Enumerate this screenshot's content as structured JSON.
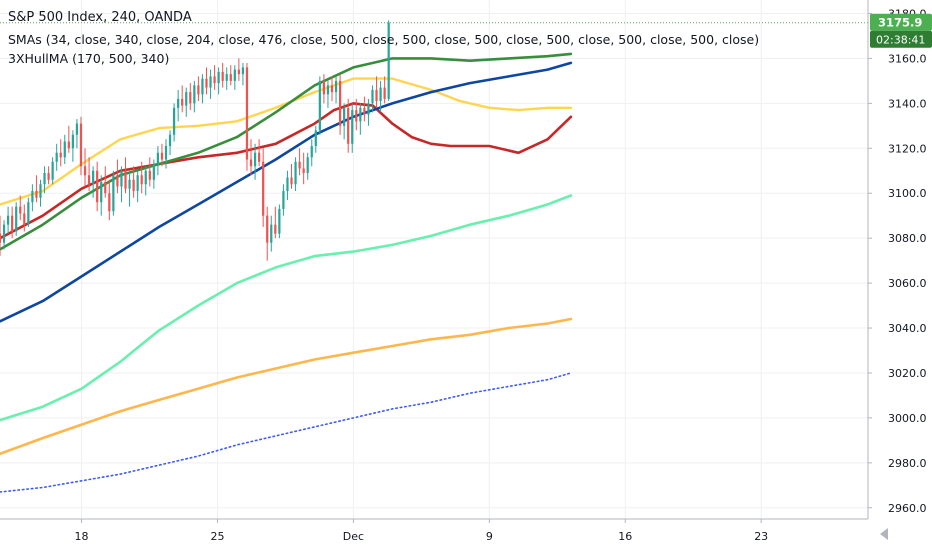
{
  "header": {
    "title": "S&P 500 Index, 240, OANDA",
    "study_1": "SMAs (34, close, 340, close, 204, close, 476, close, 500, close, 500, close, 500, close, 500, close, 500, close, 500, close)",
    "study_2": "3XHullMA (170, 500, 340)"
  },
  "price_axis": {
    "last_price": "3175.9",
    "countdown": "02:38:41",
    "last_price_color": "#4caf50",
    "countdown_color": "#2e7d32"
  },
  "chart_data": {
    "type": "candlestick",
    "title": "S&P 500 Index, 240, OANDA",
    "x_ticks": [
      {
        "label": "18",
        "day": 18
      },
      {
        "label": "25",
        "day": 25
      },
      {
        "label": "Dec",
        "day": 32
      },
      {
        "label": "9",
        "day": 39
      },
      {
        "label": "16",
        "day": 46
      },
      {
        "label": "23",
        "day": 53
      }
    ],
    "y_ticks": [
      2960,
      2980,
      3000,
      3020,
      3040,
      3060,
      3080,
      3100,
      3120,
      3140,
      3160,
      3180
    ],
    "y_tick_labels": [
      "2960.0",
      "2980.0",
      "3000.0",
      "3020.0",
      "3040.0",
      "3060.0",
      "3080.0",
      "3100.0",
      "3120.0",
      "3140.0",
      "3160.0",
      "3180.0"
    ],
    "ylim": [
      2955,
      3186
    ],
    "xlim_day": [
      13.8,
      58.5
    ],
    "last_price": 3175.9,
    "colors": {
      "up": "#26a69a",
      "down": "#ef5350"
    },
    "candles_start_day": 13.8,
    "candles_day_step": 0.2085,
    "candles": [
      [
        3082,
        3090,
        3072,
        3078
      ],
      [
        3078,
        3088,
        3075,
        3086
      ],
      [
        3086,
        3094,
        3082,
        3090
      ],
      [
        3090,
        3094,
        3080,
        3083
      ],
      [
        3083,
        3096,
        3081,
        3094
      ],
      [
        3094,
        3099,
        3088,
        3091
      ],
      [
        3091,
        3095,
        3083,
        3086
      ],
      [
        3086,
        3098,
        3085,
        3096
      ],
      [
        3096,
        3104,
        3092,
        3101
      ],
      [
        3101,
        3108,
        3096,
        3098
      ],
      [
        3098,
        3106,
        3094,
        3104
      ],
      [
        3104,
        3112,
        3100,
        3109
      ],
      [
        3109,
        3112,
        3104,
        3106
      ],
      [
        3106,
        3116,
        3104,
        3114
      ],
      [
        3114,
        3122,
        3110,
        3118
      ],
      [
        3118,
        3124,
        3112,
        3116
      ],
      [
        3116,
        3126,
        3113,
        3123
      ],
      [
        3123,
        3130,
        3118,
        3120
      ],
      [
        3120,
        3128,
        3114,
        3126
      ],
      [
        3126,
        3133,
        3120,
        3131
      ],
      [
        3131,
        3134,
        3108,
        3112
      ],
      [
        3112,
        3120,
        3103,
        3108
      ],
      [
        3108,
        3116,
        3101,
        3104
      ],
      [
        3104,
        3112,
        3098,
        3110
      ],
      [
        3110,
        3114,
        3092,
        3096
      ],
      [
        3096,
        3108,
        3090,
        3105
      ],
      [
        3105,
        3112,
        3098,
        3100
      ],
      [
        3100,
        3106,
        3088,
        3092
      ],
      [
        3092,
        3110,
        3090,
        3108
      ],
      [
        3108,
        3115,
        3100,
        3103
      ],
      [
        3103,
        3112,
        3096,
        3110
      ],
      [
        3110,
        3116,
        3100,
        3102
      ],
      [
        3102,
        3110,
        3094,
        3106
      ],
      [
        3106,
        3112,
        3098,
        3101
      ],
      [
        3101,
        3110,
        3096,
        3108
      ],
      [
        3108,
        3114,
        3100,
        3104
      ],
      [
        3104,
        3112,
        3099,
        3110
      ],
      [
        3110,
        3116,
        3103,
        3106
      ],
      [
        3106,
        3115,
        3102,
        3113
      ],
      [
        3113,
        3121,
        3108,
        3118
      ],
      [
        3118,
        3122,
        3112,
        3115
      ],
      [
        3115,
        3124,
        3111,
        3121
      ],
      [
        3121,
        3128,
        3117,
        3126
      ],
      [
        3126,
        3140,
        3123,
        3138
      ],
      [
        3138,
        3146,
        3132,
        3142
      ],
      [
        3142,
        3148,
        3136,
        3139
      ],
      [
        3139,
        3147,
        3134,
        3145
      ],
      [
        3145,
        3149,
        3137,
        3140
      ],
      [
        3140,
        3150,
        3136,
        3148
      ],
      [
        3148,
        3152,
        3141,
        3144
      ],
      [
        3144,
        3153,
        3140,
        3151
      ],
      [
        3151,
        3156,
        3144,
        3147
      ],
      [
        3147,
        3155,
        3142,
        3152
      ],
      [
        3152,
        3157,
        3146,
        3149
      ],
      [
        3149,
        3156,
        3144,
        3154
      ],
      [
        3154,
        3158,
        3147,
        3150
      ],
      [
        3150,
        3156,
        3146,
        3153
      ],
      [
        3153,
        3157,
        3148,
        3150
      ],
      [
        3150,
        3157,
        3146,
        3155
      ],
      [
        3155,
        3160,
        3150,
        3153
      ],
      [
        3153,
        3158,
        3148,
        3156
      ],
      [
        3156,
        3158,
        3110,
        3115
      ],
      [
        3115,
        3124,
        3108,
        3112
      ],
      [
        3112,
        3122,
        3106,
        3118
      ],
      [
        3118,
        3124,
        3112,
        3114
      ],
      [
        3114,
        3120,
        3085,
        3090
      ],
      [
        3090,
        3094,
        3070,
        3078
      ],
      [
        3078,
        3090,
        3074,
        3086
      ],
      [
        3086,
        3094,
        3080,
        3082
      ],
      [
        3082,
        3095,
        3080,
        3093
      ],
      [
        3093,
        3104,
        3090,
        3101
      ],
      [
        3101,
        3110,
        3097,
        3107
      ],
      [
        3107,
        3113,
        3102,
        3104
      ],
      [
        3104,
        3116,
        3101,
        3114
      ],
      [
        3114,
        3120,
        3108,
        3111
      ],
      [
        3111,
        3118,
        3104,
        3109
      ],
      [
        3109,
        3118,
        3106,
        3116
      ],
      [
        3116,
        3124,
        3112,
        3121
      ],
      [
        3121,
        3130,
        3118,
        3128
      ],
      [
        3128,
        3152,
        3126,
        3150
      ],
      [
        3150,
        3153,
        3140,
        3144
      ],
      [
        3144,
        3150,
        3138,
        3148
      ],
      [
        3148,
        3152,
        3141,
        3145
      ],
      [
        3145,
        3152,
        3140,
        3150
      ],
      [
        3150,
        3153,
        3126,
        3130
      ],
      [
        3130,
        3140,
        3124,
        3138
      ],
      [
        3138,
        3142,
        3118,
        3122
      ],
      [
        3122,
        3140,
        3118,
        3137
      ],
      [
        3137,
        3142,
        3128,
        3132
      ],
      [
        3132,
        3140,
        3126,
        3138
      ],
      [
        3138,
        3143,
        3132,
        3135
      ],
      [
        3135,
        3142,
        3130,
        3140
      ],
      [
        3140,
        3148,
        3136,
        3146
      ],
      [
        3146,
        3152,
        3138,
        3141
      ],
      [
        3141,
        3150,
        3136,
        3147
      ],
      [
        3147,
        3152,
        3140,
        3142
      ],
      [
        3142,
        3177,
        3141,
        3175.9
      ]
    ],
    "series": [
      {
        "color": "#ffd54f",
        "width": 2.4,
        "style": "line",
        "points": [
          [
            13.8,
            3095
          ],
          [
            16,
            3101
          ],
          [
            18,
            3113
          ],
          [
            20,
            3124
          ],
          [
            22,
            3129
          ],
          [
            24,
            3130
          ],
          [
            26,
            3132
          ],
          [
            28,
            3138
          ],
          [
            30,
            3145
          ],
          [
            32,
            3151
          ],
          [
            34,
            3151
          ],
          [
            36,
            3146
          ],
          [
            37.5,
            3141
          ],
          [
            39,
            3138
          ],
          [
            40.5,
            3137
          ],
          [
            42,
            3138
          ],
          [
            43.2,
            3138
          ]
        ]
      },
      {
        "color": "#c62828",
        "width": 2.6,
        "style": "line",
        "points": [
          [
            13.8,
            3080
          ],
          [
            16,
            3090
          ],
          [
            18,
            3102
          ],
          [
            20,
            3110
          ],
          [
            22,
            3113
          ],
          [
            24,
            3116
          ],
          [
            26,
            3118
          ],
          [
            28,
            3122
          ],
          [
            30,
            3131
          ],
          [
            31,
            3137
          ],
          [
            32,
            3140
          ],
          [
            33,
            3139
          ],
          [
            34,
            3131
          ],
          [
            35,
            3125
          ],
          [
            36,
            3122
          ],
          [
            37,
            3121
          ],
          [
            38,
            3121
          ],
          [
            39,
            3121
          ],
          [
            40.5,
            3118
          ],
          [
            42,
            3124
          ],
          [
            43.2,
            3134
          ]
        ]
      },
      {
        "color": "#388e3c",
        "width": 2.6,
        "style": "line",
        "points": [
          [
            13.8,
            3075
          ],
          [
            16,
            3086
          ],
          [
            18,
            3098
          ],
          [
            20,
            3108
          ],
          [
            22,
            3113
          ],
          [
            24,
            3118
          ],
          [
            26,
            3125
          ],
          [
            28,
            3136
          ],
          [
            30,
            3148
          ],
          [
            32,
            3156
          ],
          [
            34,
            3160
          ],
          [
            36,
            3160
          ],
          [
            38,
            3159
          ],
          [
            40,
            3160
          ],
          [
            42,
            3161
          ],
          [
            43.2,
            3162
          ]
        ]
      },
      {
        "color": "#0d47a1",
        "width": 2.6,
        "style": "line",
        "points": [
          [
            13.8,
            3043
          ],
          [
            16,
            3052
          ],
          [
            18,
            3063
          ],
          [
            20,
            3074
          ],
          [
            22,
            3085
          ],
          [
            24,
            3095
          ],
          [
            26,
            3105
          ],
          [
            28,
            3115
          ],
          [
            30,
            3126
          ],
          [
            32,
            3134
          ],
          [
            34,
            3140
          ],
          [
            36,
            3145
          ],
          [
            38,
            3149
          ],
          [
            40,
            3152
          ],
          [
            42,
            3155
          ],
          [
            43.2,
            3158
          ]
        ]
      },
      {
        "color": "#69f0ae",
        "width": 2.6,
        "style": "line",
        "points": [
          [
            13.8,
            2999
          ],
          [
            16,
            3005
          ],
          [
            18,
            3013
          ],
          [
            20,
            3025
          ],
          [
            22,
            3039
          ],
          [
            24,
            3050
          ],
          [
            26,
            3060
          ],
          [
            28,
            3067
          ],
          [
            30,
            3072
          ],
          [
            32,
            3074
          ],
          [
            34,
            3077
          ],
          [
            36,
            3081
          ],
          [
            38,
            3086
          ],
          [
            40,
            3090
          ],
          [
            42,
            3095
          ],
          [
            43.2,
            3099
          ]
        ]
      },
      {
        "color": "#ffb74d",
        "width": 2.6,
        "style": "line",
        "points": [
          [
            13.8,
            2984
          ],
          [
            16,
            2991
          ],
          [
            18,
            2997
          ],
          [
            20,
            3003
          ],
          [
            22,
            3008
          ],
          [
            24,
            3013
          ],
          [
            26,
            3018
          ],
          [
            28,
            3022
          ],
          [
            30,
            3026
          ],
          [
            32,
            3029
          ],
          [
            34,
            3032
          ],
          [
            36,
            3035
          ],
          [
            38,
            3037
          ],
          [
            40,
            3040
          ],
          [
            42,
            3042
          ],
          [
            43.2,
            3044
          ]
        ]
      },
      {
        "color": "#3d5afe",
        "width": 1.6,
        "style": "dotted",
        "points": [
          [
            13.8,
            2967
          ],
          [
            16,
            2969
          ],
          [
            18,
            2972
          ],
          [
            20,
            2975
          ],
          [
            22,
            2979
          ],
          [
            24,
            2983
          ],
          [
            26,
            2988
          ],
          [
            28,
            2992
          ],
          [
            30,
            2996
          ],
          [
            32,
            3000
          ],
          [
            34,
            3004
          ],
          [
            36,
            3007
          ],
          [
            38,
            3011
          ],
          [
            40,
            3014
          ],
          [
            42,
            3017
          ],
          [
            43.2,
            3020
          ]
        ]
      }
    ]
  }
}
